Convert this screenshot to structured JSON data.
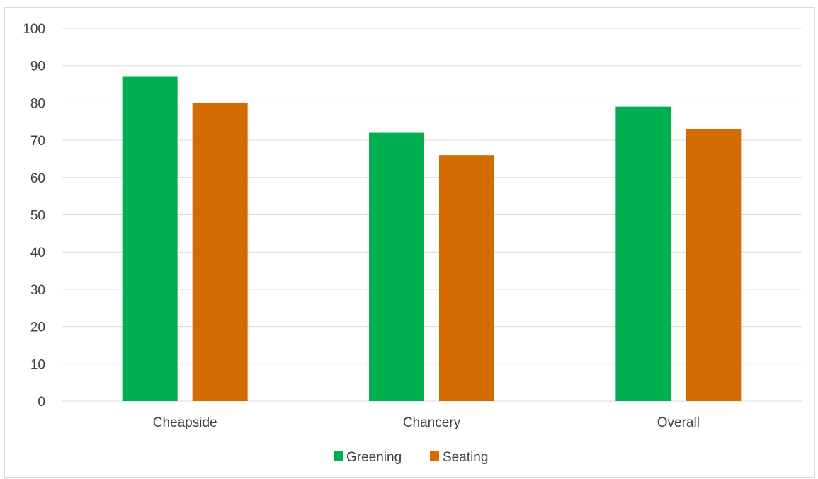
{
  "chart_data": {
    "type": "bar",
    "categories": [
      "Cheapside",
      "Chancery",
      "Overall"
    ],
    "series": [
      {
        "name": "Greening",
        "values": [
          87,
          72,
          79
        ],
        "color": "#00b050"
      },
      {
        "name": "Seating",
        "values": [
          80,
          66,
          73
        ],
        "color": "#d46b00"
      }
    ],
    "ylim": [
      0,
      100
    ],
    "yticks": [
      0,
      10,
      20,
      30,
      40,
      50,
      60,
      70,
      80,
      90,
      100
    ],
    "grid": true,
    "gridline_color": "#d9d9d9",
    "legend_position": "bottom",
    "title": "",
    "xlabel": "",
    "ylabel": ""
  }
}
